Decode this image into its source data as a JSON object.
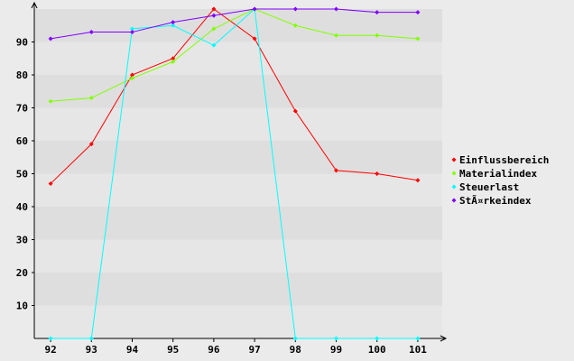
{
  "chart_data": {
    "type": "line",
    "x": [
      92,
      93,
      94,
      95,
      96,
      97,
      98,
      99,
      100,
      101
    ],
    "ylim": [
      0,
      100
    ],
    "yticks": [
      10,
      20,
      30,
      40,
      50,
      60,
      70,
      80,
      90
    ],
    "grid": true,
    "legend_position": "right",
    "series": [
      {
        "name": "Einflussbereich",
        "color": "#ff0000",
        "values": [
          47,
          59,
          80,
          85,
          100,
          91,
          69,
          51,
          50,
          48
        ]
      },
      {
        "name": "Materialindex",
        "color": "#80ff00",
        "values": [
          72,
          73,
          79,
          84,
          94,
          100,
          95,
          92,
          92,
          91
        ]
      },
      {
        "name": "Steuerlast",
        "color": "#00ffff",
        "values": [
          0,
          0,
          94,
          95,
          89,
          100,
          0,
          0,
          0,
          0
        ]
      },
      {
        "name": "StÃ¤rkeindex",
        "color": "#8000ff",
        "values": [
          91,
          93,
          93,
          96,
          98,
          100,
          100,
          100,
          99,
          99
        ]
      }
    ]
  }
}
